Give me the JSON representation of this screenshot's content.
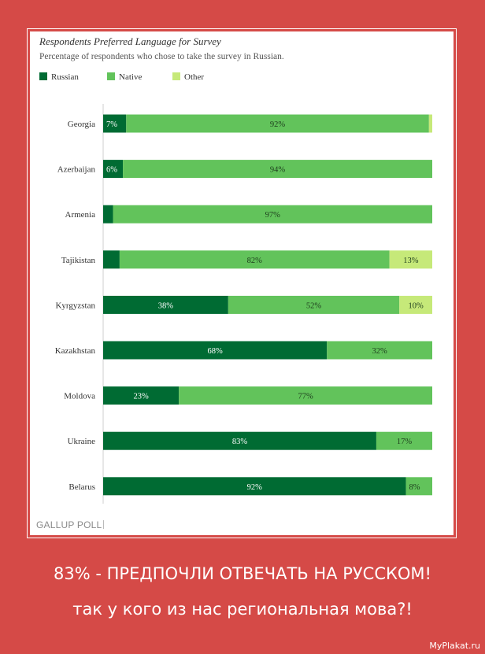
{
  "poster": {
    "line1": "83% - ПРЕДПОЧЛИ ОТВЕЧАТЬ НА РУССКОМ!",
    "line2": "так у кого из нас региональная мова?!",
    "watermark": "MyPlakat.ru"
  },
  "logo_text": "GALLUP POLL",
  "colors": {
    "Russian": "#006b33",
    "Native": "#62c35b",
    "Other": "#c6e979"
  },
  "chart_data": {
    "type": "bar",
    "orientation": "horizontal",
    "stacked": true,
    "title": "Respondents Preferred Language for Survey",
    "subtitle": "Percentage of respondents who chose to take the survey in Russian.",
    "legend": [
      "Russian",
      "Native",
      "Other"
    ],
    "legend_position": "top-left",
    "xlim": [
      0,
      100
    ],
    "grid": false,
    "categories": [
      "Georgia",
      "Azerbaijan",
      "Armenia",
      "Tajikistan",
      "Kyrgyzstan",
      "Kazakhstan",
      "Moldova",
      "Ukraine",
      "Belarus"
    ],
    "series": [
      {
        "name": "Russian",
        "values": [
          7,
          6,
          3,
          5,
          38,
          68,
          23,
          83,
          92
        ],
        "labels": [
          "7%",
          "6%",
          "",
          "",
          "38%",
          "68%",
          "23%",
          "83%",
          "92%"
        ]
      },
      {
        "name": "Native",
        "values": [
          92,
          94,
          97,
          82,
          52,
          32,
          77,
          17,
          8
        ],
        "labels": [
          "92%",
          "94%",
          "97%",
          "82%",
          "52%",
          "32%",
          "77%",
          "17%",
          "8%"
        ]
      },
      {
        "name": "Other",
        "values": [
          1,
          0,
          0,
          13,
          10,
          0,
          0,
          0,
          0
        ],
        "labels": [
          "",
          "",
          "",
          "13%",
          "10%",
          "",
          "",
          "",
          ""
        ]
      }
    ]
  }
}
